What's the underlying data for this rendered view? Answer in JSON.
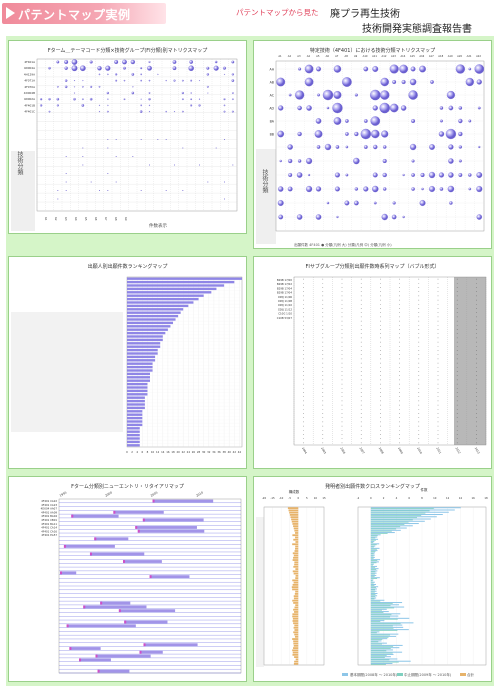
{
  "header": {
    "title": "パテントマップ実例",
    "subtitle": "パテントマップから見た",
    "report_line1": "廃プラ再生技術",
    "report_line2": "技術開発実態調査報告書"
  },
  "panels": {
    "p1": {
      "title": "Fターム＿テーマコード分類×技術グループ(FI分類)別マトリクスマップ",
      "row_labels": [
        "4F401A",
        "4D004A",
        "4H129A",
        "4F071A",
        "4F070A",
        "4D004B",
        "4D002A",
        "4F401B",
        "4F401C"
      ],
      "side_label": "技術分類",
      "axis_note": "件数表示"
    },
    "p2": {
      "title": "特定技術（4F401）における技術分類マトリクスマップ",
      "row_labels": [
        "AA",
        "AB",
        "AC",
        "AD",
        "BA",
        "BB"
      ],
      "side_label": "技術分類",
      "legend": "出願件数  4F401 ●   分類(凡例 大)  分類(凡例 中)  分類(凡例 小)"
    },
    "p3": {
      "title": "出願人別出願件数ランキングマップ"
    },
    "p4": {
      "title": "FIサブグループ分類別出願件数時系列マップ（バブル形式）",
      "row_labels": [
        "B29B 17/00",
        "B29B 17/02",
        "B29B 17/04",
        "B29B 17/04",
        "C08J 11/06",
        "C08J 11/08",
        "C08J 11/10",
        "C08J 11/12",
        "C10G 1/10",
        "C10B 53/07"
      ]
    },
    "p5": {
      "title": "Fターム分類別ニューエントリ・リタイアリマップ",
      "years": [
        "1995",
        "2000",
        "2005",
        "2010"
      ],
      "row_labels": [
        "4F401 CA22",
        "4F401 CA23",
        "4D004 AA07",
        "4F401 AA09",
        "4F401 BA04",
        "4F401 CB01",
        "4F401 BA11",
        "4F401 CA14",
        "4F401 CA16",
        "4F401 EA57"
      ]
    },
    "p6": {
      "title": "発明者別出願件数クロスランキングマップ",
      "left_axis_title": "構成数",
      "right_axis_title": "件数",
      "legend_a": "基本期間(2008年 〜 2010年)",
      "legend_b": "中止期間(2009年 〜 2010年)",
      "legend_c": "合計"
    }
  },
  "chart_data": [
    {
      "type": "scatter",
      "title": "Fターム＿テーマコード分類×技術グループ(FI分類)別マトリクスマップ",
      "rows": [
        "4F401A",
        "4D004A",
        "4H129A",
        "4F071A",
        "4F070A",
        "4D004B",
        "4D002A",
        "4F401B",
        "4F401C"
      ],
      "note": "bubble matrix; bubble sizes approximate"
    },
    {
      "type": "scatter",
      "title": "特定技術（4F401）における技術分類マトリクスマップ",
      "rows": [
        "AA",
        "AB",
        "AC",
        "AD",
        "BA",
        "BB"
      ]
    },
    {
      "type": "bar",
      "title": "出願人別出願件数ランキングマップ",
      "values": [
        45,
        42,
        38,
        35,
        33,
        30,
        28,
        26,
        24,
        22,
        21,
        20,
        19,
        18,
        17,
        16,
        15,
        14,
        14,
        13,
        13,
        12,
        12,
        11,
        11,
        10,
        10,
        10,
        9,
        9,
        9,
        8,
        8,
        8,
        8,
        7,
        7,
        7,
        7,
        6,
        6,
        6,
        6,
        6,
        5,
        5,
        5,
        5,
        5,
        5
      ],
      "xlim": [
        0,
        45
      ]
    },
    {
      "type": "scatter",
      "title": "FIサブグループ分類別出願件数時系列マップ（バブル形式）",
      "x": [
        "2004",
        "2005",
        "2006",
        "2007",
        "2008",
        "2009",
        "2010",
        "2011",
        "2012",
        "2013"
      ]
    },
    {
      "type": "bar",
      "title": "Fターム分類別ニューエントリ・リタイアリマップ",
      "x": [
        "1995",
        "2000",
        "2005",
        "2010"
      ]
    },
    {
      "type": "bar",
      "title": "発明者別出願件数クロスランキングマップ",
      "left_ticks": [
        "-20",
        "-15",
        "-10",
        "-5",
        "0",
        "5",
        "10",
        "15"
      ],
      "right_ticks": [
        "-2",
        "0",
        "2",
        "4",
        "6",
        "8",
        "10",
        "12",
        "14",
        "16",
        "18"
      ]
    }
  ]
}
